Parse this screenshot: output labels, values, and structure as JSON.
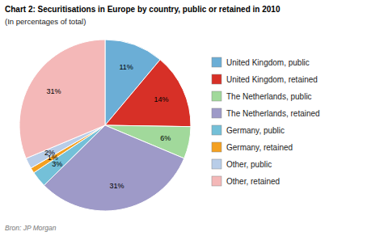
{
  "chart_data": {
    "type": "pie",
    "title": "Chart 2: Securitisations in Europe by country, public or retained in 2010",
    "subtitle": "(In percentages of total)",
    "source": "Bron: JP Morgan",
    "categories": [
      "United Kingdom, public",
      "United Kingdom, retained",
      "The Netherlands, public",
      "The Netherlands, retained",
      "Germany, public",
      "Germany, retained",
      "Other, public",
      "Other, retained"
    ],
    "values": [
      11,
      14,
      6,
      31,
      3,
      1,
      2,
      31
    ],
    "value_labels": [
      "11%",
      "14%",
      "6%",
      "31%",
      "3%",
      "1%",
      "2%",
      "31%"
    ],
    "colors": [
      "#6baed6",
      "#d73027",
      "#a1d99b",
      "#9e9ac8",
      "#74c0d8",
      "#f4a020",
      "#b8cde8",
      "#f4b8b8"
    ],
    "data_labels": true,
    "legend": "right"
  }
}
